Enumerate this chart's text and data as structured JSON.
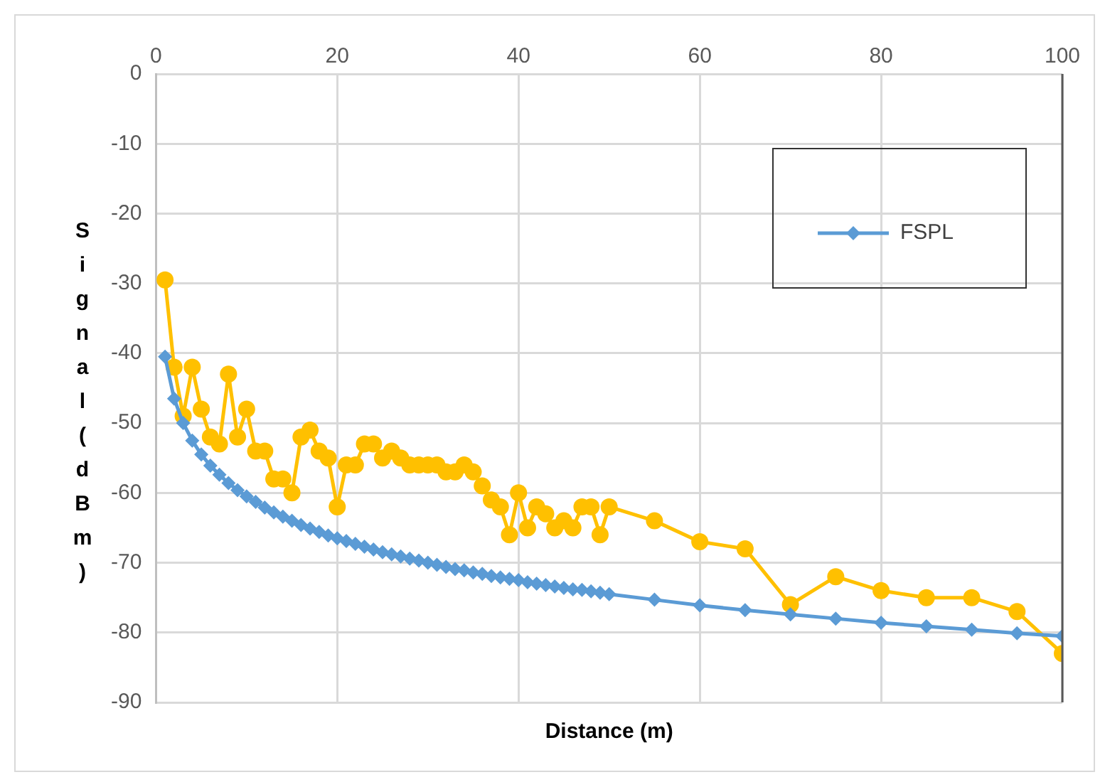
{
  "chart_data": {
    "type": "line",
    "xlabel": "Distance (m)",
    "ylabel": "Signal (dBm)",
    "xlim": [
      0,
      100
    ],
    "xticks": [
      0,
      20,
      40,
      60,
      80,
      100
    ],
    "ylim": [
      -90,
      0
    ],
    "yticks": [
      0,
      -10,
      -20,
      -30,
      -40,
      -50,
      -60,
      -70,
      -80,
      -90
    ],
    "grid": true,
    "legend": "top right",
    "line_style": "solid",
    "series": [
      {
        "color": "#ffc000",
        "marker": "circle",
        "x": [
          1,
          2,
          3,
          4,
          5,
          6,
          7,
          8,
          9,
          10,
          11,
          12,
          13,
          14,
          15,
          16,
          17,
          18,
          19,
          20,
          21,
          22,
          23,
          24,
          25,
          26,
          27,
          28,
          29,
          30,
          31,
          32,
          33,
          34,
          35,
          36,
          37,
          38,
          39,
          40,
          41,
          42,
          43,
          44,
          45,
          46,
          47,
          48,
          49,
          50,
          55,
          60,
          65,
          70,
          75,
          80,
          85,
          90,
          95,
          100
        ],
        "values": [
          -29.5,
          -42,
          -49,
          -42,
          -48,
          -52,
          -53,
          -43,
          -52,
          -48,
          -54,
          -54,
          -58,
          -58,
          -60,
          -52,
          -51,
          -54,
          -55,
          -62,
          -56,
          -56,
          -53,
          -53,
          -55,
          -54,
          -55,
          -56,
          -56,
          -56,
          -56,
          -57,
          -57,
          -56,
          -57,
          -59,
          -61,
          -62,
          -66,
          -60,
          -65,
          -62,
          -63,
          -65,
          -64,
          -65,
          -62,
          -62,
          -66,
          -62,
          -64,
          -67,
          -68,
          -76,
          -72,
          -74,
          -75,
          -75,
          -77,
          -83
        ]
      },
      {
        "name": "FSPL",
        "color": "#5b9bd5",
        "marker": "diamond",
        "x": [
          1,
          2,
          3,
          4,
          5,
          6,
          7,
          8,
          9,
          10,
          11,
          12,
          13,
          14,
          15,
          16,
          17,
          18,
          19,
          20,
          21,
          22,
          23,
          24,
          25,
          26,
          27,
          28,
          29,
          30,
          31,
          32,
          33,
          34,
          35,
          36,
          37,
          38,
          39,
          40,
          41,
          42,
          43,
          44,
          45,
          46,
          47,
          48,
          49,
          50,
          55,
          60,
          65,
          70,
          75,
          80,
          85,
          90,
          95,
          100
        ],
        "values": [
          -40.5,
          -46.5,
          -50.0,
          -52.5,
          -54.5,
          -56.1,
          -57.4,
          -58.6,
          -59.6,
          -60.5,
          -61.3,
          -62.1,
          -62.8,
          -63.4,
          -64.0,
          -64.6,
          -65.1,
          -65.6,
          -66.1,
          -66.5,
          -66.9,
          -67.3,
          -67.7,
          -68.1,
          -68.5,
          -68.8,
          -69.1,
          -69.4,
          -69.7,
          -70.0,
          -70.3,
          -70.6,
          -70.9,
          -71.1,
          -71.4,
          -71.6,
          -71.9,
          -72.1,
          -72.3,
          -72.5,
          -72.8,
          -73.0,
          -73.2,
          -73.4,
          -73.6,
          -73.8,
          -73.9,
          -74.1,
          -74.3,
          -74.5,
          -75.3,
          -76.1,
          -76.8,
          -77.4,
          -78.0,
          -78.6,
          -79.1,
          -79.6,
          -80.1,
          -80.5
        ]
      }
    ]
  }
}
